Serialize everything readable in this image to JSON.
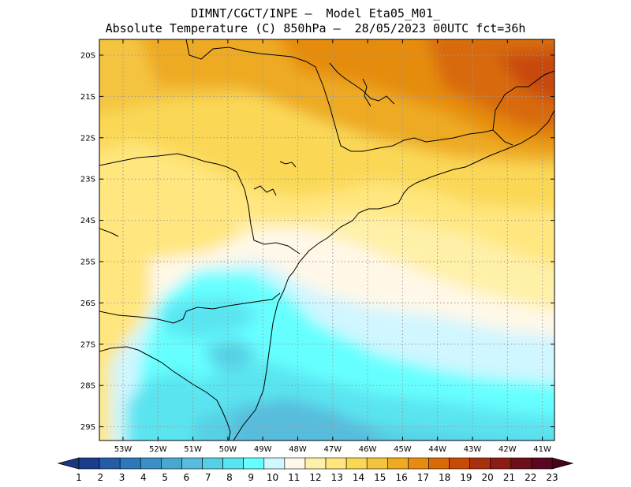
{
  "title": {
    "line1": "DIMNT/CGCT/INPE –  Model Eta05_M01_",
    "line2": "Absolute Temperature (C) 850hPa –  28/05/2023 00UTC fct=36h"
  },
  "map": {
    "lat_labels": [
      "20S",
      "21S",
      "22S",
      "23S",
      "24S",
      "25S",
      "26S",
      "27S",
      "28S",
      "29S"
    ],
    "lon_labels": [
      "53W",
      "52W",
      "51W",
      "50W",
      "49W",
      "48W",
      "47W",
      "46W",
      "45W",
      "44W",
      "43W",
      "42W",
      "41W"
    ]
  },
  "colorbar": {
    "labels": [
      "1",
      "2",
      "3",
      "4",
      "5",
      "6",
      "7",
      "8",
      "9",
      "10",
      "11",
      "12",
      "13",
      "14",
      "15",
      "16",
      "17",
      "18",
      "19",
      "20",
      "21",
      "22",
      "23"
    ],
    "colors": [
      "#1c3c8c",
      "#245ca8",
      "#2c78b8",
      "#3a8fc4",
      "#4aa8d0",
      "#58bcdc",
      "#56d0e4",
      "#5ae4f0",
      "#66ffff",
      "#d0f6ff",
      "#fff8e8",
      "#fff0a8",
      "#ffe67e",
      "#fad856",
      "#f4c440",
      "#eeaa20",
      "#e68c10",
      "#d86a08",
      "#c84a08",
      "#a8300c",
      "#8c1c14",
      "#6e101c",
      "#5a0820"
    ],
    "underflow_color": "#1a3888",
    "overflow_color": "#4a0418"
  }
}
